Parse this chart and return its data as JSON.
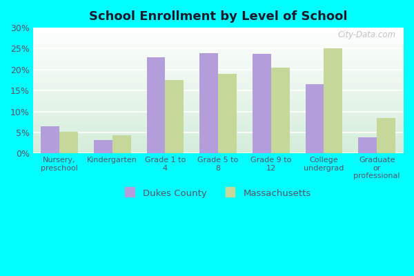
{
  "title": "School Enrollment by Level of School",
  "categories": [
    "Nursery,\npreschool",
    "Kindergarten",
    "Grade 1 to\n4",
    "Grade 5 to\n8",
    "Grade 9 to\n12",
    "College\nundergrad",
    "Graduate\nor\nprofessional"
  ],
  "dukes_county": [
    6.5,
    3.2,
    23.0,
    24.0,
    23.8,
    16.5,
    3.8
  ],
  "massachusetts": [
    5.1,
    4.4,
    17.5,
    19.0,
    20.5,
    25.0,
    8.5
  ],
  "dukes_color": "#b39ddb",
  "mass_color": "#c5d89a",
  "plot_bg_top": "#ffffff",
  "plot_bg_bottom": "#d4edda",
  "outer_bg": "#00ffff",
  "ylim": [
    0,
    30
  ],
  "yticks": [
    0,
    5,
    10,
    15,
    20,
    25,
    30
  ],
  "legend_dukes": "Dukes County",
  "legend_mass": "Massachusetts",
  "bar_width": 0.35,
  "watermark": "City-Data.com",
  "title_color": "#1a1a2e",
  "tick_color": "#555566",
  "grid_color": "#ffffff",
  "figsize": [
    6.0,
    4.0
  ],
  "dpi": 100
}
